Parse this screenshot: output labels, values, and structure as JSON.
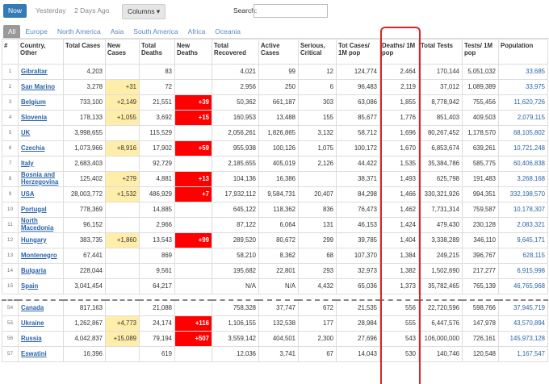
{
  "toolbar": {
    "buttons": [
      "Now",
      "Yesterday",
      "2 Days Ago"
    ],
    "columns_button": "Columns",
    "search_label": "Search:"
  },
  "tabs": [
    "All",
    "Europe",
    "North America",
    "Asia",
    "South America",
    "Africa",
    "Oceania"
  ],
  "table": {
    "headers": [
      "#",
      "Country, Other",
      "Total Cases",
      "New Cases",
      "Total Deaths",
      "New Deaths",
      "Total Recovered",
      "Active Cases",
      "Serious, Critical",
      "Tot Cases/ 1M pop",
      "Deaths/ 1M pop",
      "Total Tests",
      "Tests/ 1M pop",
      "Population"
    ],
    "top_rows": [
      [
        1,
        "Gibraltar",
        "4,203",
        null,
        "83",
        null,
        "4,021",
        "99",
        "12",
        "124,774",
        "2,464",
        "170,144",
        "5,051,032",
        "33,685"
      ],
      [
        2,
        "San Marino",
        "3,278",
        "+31",
        "72",
        null,
        "2,956",
        "250",
        "6",
        "96,483",
        "2,119",
        "37,012",
        "1,089,389",
        "33,975"
      ],
      [
        3,
        "Belgium",
        "733,100",
        "+2,149",
        "21,551",
        "+39",
        "50,362",
        "661,187",
        "303",
        "63,086",
        "1,855",
        "8,778,942",
        "755,456",
        "11,620,726"
      ],
      [
        4,
        "Slovenia",
        "178,133",
        "+1,055",
        "3,692",
        "+15",
        "160,953",
        "13,488",
        "155",
        "85,677",
        "1,776",
        "851,403",
        "409,503",
        "2,079,115"
      ],
      [
        5,
        "UK",
        "3,998,655",
        null,
        "115,529",
        null,
        "2,056,261",
        "1,826,865",
        "3,132",
        "58,712",
        "1,696",
        "80,267,452",
        "1,178,570",
        "68,105,802"
      ],
      [
        6,
        "Czechia",
        "1,073,966",
        "+8,916",
        "17,902",
        "+59",
        "955,938",
        "100,126",
        "1,075",
        "100,172",
        "1,670",
        "6,853,674",
        "639,261",
        "10,721,248"
      ],
      [
        7,
        "Italy",
        "2,683,403",
        null,
        "92,729",
        null,
        "2,185,655",
        "405,019",
        "2,126",
        "44,422",
        "1,535",
        "35,384,786",
        "585,775",
        "60,406,838"
      ],
      [
        8,
        "Bosnia and Herzegovina",
        "125,402",
        "+279",
        "4,881",
        "+13",
        "104,136",
        "16,386",
        null,
        "38,371",
        "1,493",
        "625,798",
        "191,483",
        "3,268,168"
      ],
      [
        9,
        "USA",
        "28,003,772",
        "+1,532",
        "486,929",
        "+7",
        "17,932,112",
        "9,584,731",
        "20,407",
        "84,298",
        "1,466",
        "330,321,926",
        "994,351",
        "332,198,570"
      ],
      [
        10,
        "Portugal",
        "778,369",
        null,
        "14,885",
        null,
        "645,122",
        "118,362",
        "836",
        "76,473",
        "1,462",
        "7,731,314",
        "759,587",
        "10,178,307"
      ],
      [
        11,
        "North Macedonia",
        "96,152",
        null,
        "2,966",
        null,
        "87,122",
        "6,064",
        "131",
        "46,153",
        "1,424",
        "479,430",
        "230,128",
        "2,083,321"
      ],
      [
        12,
        "Hungary",
        "383,735",
        "+1,860",
        "13,543",
        "+99",
        "289,520",
        "80,672",
        "299",
        "39,785",
        "1,404",
        "3,338,289",
        "346,110",
        "9,645,171"
      ],
      [
        13,
        "Montenegro",
        "67,441",
        null,
        "869",
        null,
        "58,210",
        "8,362",
        "68",
        "107,370",
        "1,384",
        "249,215",
        "396,767",
        "628,115"
      ],
      [
        14,
        "Bulgaria",
        "228,044",
        null,
        "9,561",
        null,
        "195,682",
        "22,801",
        "293",
        "32,973",
        "1,382",
        "1,502,690",
        "217,277",
        "6,915,998"
      ],
      [
        15,
        "Spain",
        "3,041,454",
        null,
        "64,217",
        null,
        "N/A",
        "N/A",
        "4,432",
        "65,036",
        "1,373",
        "35,782,465",
        "765,139",
        "46,765,968"
      ]
    ],
    "bottom_rows": [
      [
        54,
        "Canada",
        "817,163",
        null,
        "21,088",
        null,
        "758,328",
        "37,747",
        "672",
        "21,535",
        "556",
        "22,720,596",
        "598,766",
        "37,945,719"
      ],
      [
        55,
        "Ukraine",
        "1,262,867",
        "+4,773",
        "24,174",
        "+116",
        "1,106,155",
        "132,538",
        "177",
        "28,984",
        "555",
        "6,447,576",
        "147,978",
        "43,570,894"
      ],
      [
        56,
        "Russia",
        "4,042,837",
        "+15,089",
        "79,194",
        "+507",
        "3,559,142",
        "404,501",
        "2,300",
        "27,696",
        "543",
        "106,000,000",
        "726,161",
        "145,973,128"
      ],
      [
        57,
        "Eswatini",
        "16,396",
        null,
        "619",
        null,
        "12,036",
        "3,741",
        "67",
        "14,043",
        "530",
        "140,746",
        "120,548",
        "1,167,547"
      ]
    ]
  }
}
